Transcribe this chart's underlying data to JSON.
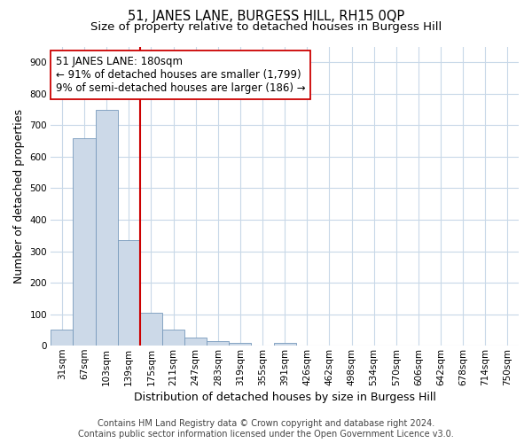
{
  "title": "51, JANES LANE, BURGESS HILL, RH15 0QP",
  "subtitle": "Size of property relative to detached houses in Burgess Hill",
  "xlabel": "Distribution of detached houses by size in Burgess Hill",
  "ylabel": "Number of detached properties",
  "categories": [
    "31sqm",
    "67sqm",
    "103sqm",
    "139sqm",
    "175sqm",
    "211sqm",
    "247sqm",
    "283sqm",
    "319sqm",
    "355sqm",
    "391sqm",
    "426sqm",
    "462sqm",
    "498sqm",
    "534sqm",
    "570sqm",
    "606sqm",
    "642sqm",
    "678sqm",
    "714sqm",
    "750sqm"
  ],
  "values": [
    50,
    660,
    748,
    335,
    105,
    50,
    25,
    14,
    9,
    0,
    8,
    0,
    0,
    0,
    0,
    0,
    0,
    0,
    0,
    0,
    0
  ],
  "bar_color": "#ccd9e8",
  "bar_edge_color": "#7799bb",
  "vline_color": "#cc0000",
  "annotation_text": "51 JANES LANE: 180sqm\n← 91% of detached houses are smaller (1,799)\n9% of semi-detached houses are larger (186) →",
  "annotation_box_color": "#ffffff",
  "annotation_box_edge": "#cc0000",
  "ylim": [
    0,
    950
  ],
  "yticks": [
    0,
    100,
    200,
    300,
    400,
    500,
    600,
    700,
    800,
    900
  ],
  "footer1": "Contains HM Land Registry data © Crown copyright and database right 2024.",
  "footer2": "Contains public sector information licensed under the Open Government Licence v3.0.",
  "bg_color": "#ffffff",
  "grid_color": "#c8d8e8",
  "title_fontsize": 10.5,
  "subtitle_fontsize": 9.5,
  "axis_label_fontsize": 9,
  "tick_fontsize": 7.5,
  "footer_fontsize": 7,
  "annotation_fontsize": 8.5
}
